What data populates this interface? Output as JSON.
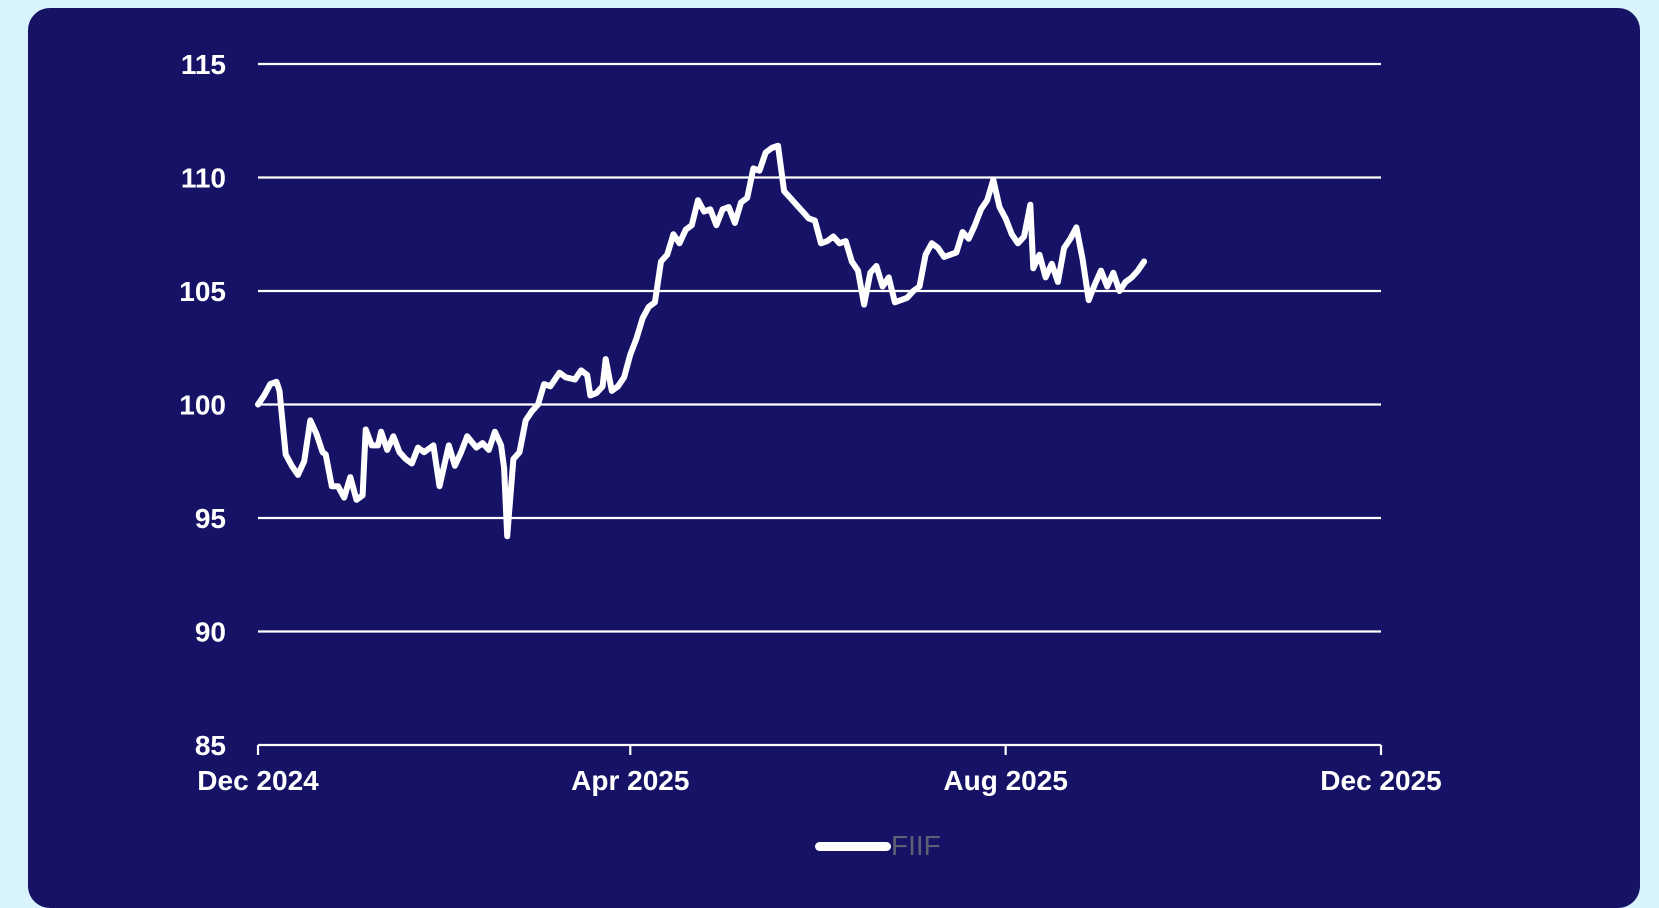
{
  "colors": {
    "page_background": "#d9f3fc",
    "card_background": "#161366",
    "line": "#ffffff",
    "gridline": "#ffffff",
    "legend_label": "#5f5f74"
  },
  "chart_data": {
    "type": "line",
    "title": "",
    "xlabel": "",
    "ylabel": "",
    "ylim": [
      85,
      115
    ],
    "yticks": [
      85,
      90,
      95,
      100,
      105,
      110,
      115
    ],
    "xlim": [
      "2024-12-01",
      "2025-12-01"
    ],
    "xticks": [
      {
        "date": "2024-12-01",
        "label": "Dec 2024"
      },
      {
        "date": "2025-04-01",
        "label": "Apr 2025"
      },
      {
        "date": "2025-08-01",
        "label": "Aug 2025"
      },
      {
        "date": "2025-12-01",
        "label": "Dec 2025"
      }
    ],
    "grid": "horizontal",
    "legend_position": "bottom-center",
    "series": [
      {
        "name": "FIIF",
        "color": "#ffffff",
        "points": [
          [
            "2024-12-01",
            100.0
          ],
          [
            "2024-12-03",
            100.4
          ],
          [
            "2024-12-05",
            100.9
          ],
          [
            "2024-12-07",
            101.0
          ],
          [
            "2024-12-08",
            100.6
          ],
          [
            "2024-12-10",
            97.8
          ],
          [
            "2024-12-12",
            97.3
          ],
          [
            "2024-12-14",
            96.9
          ],
          [
            "2024-12-16",
            97.5
          ],
          [
            "2024-12-18",
            99.3
          ],
          [
            "2024-12-20",
            98.7
          ],
          [
            "2024-12-22",
            97.9
          ],
          [
            "2024-12-23",
            97.8
          ],
          [
            "2024-12-25",
            96.4
          ],
          [
            "2024-12-27",
            96.4
          ],
          [
            "2024-12-29",
            95.9
          ],
          [
            "2024-12-31",
            96.8
          ],
          [
            "2025-01-02",
            95.8
          ],
          [
            "2025-01-04",
            96.0
          ],
          [
            "2025-01-05",
            98.9
          ],
          [
            "2025-01-07",
            98.2
          ],
          [
            "2025-01-09",
            98.2
          ],
          [
            "2025-01-10",
            98.8
          ],
          [
            "2025-01-12",
            98.0
          ],
          [
            "2025-01-14",
            98.6
          ],
          [
            "2025-01-16",
            97.9
          ],
          [
            "2025-01-18",
            97.6
          ],
          [
            "2025-01-20",
            97.4
          ],
          [
            "2025-01-22",
            98.1
          ],
          [
            "2025-01-24",
            97.9
          ],
          [
            "2025-01-27",
            98.2
          ],
          [
            "2025-01-29",
            96.4
          ],
          [
            "2025-02-01",
            98.2
          ],
          [
            "2025-02-03",
            97.3
          ],
          [
            "2025-02-05",
            97.9
          ],
          [
            "2025-02-07",
            98.6
          ],
          [
            "2025-02-10",
            98.1
          ],
          [
            "2025-02-12",
            98.3
          ],
          [
            "2025-02-14",
            98.0
          ],
          [
            "2025-02-16",
            98.8
          ],
          [
            "2025-02-18",
            98.2
          ],
          [
            "2025-02-19",
            97.2
          ],
          [
            "2025-02-20",
            94.2
          ],
          [
            "2025-02-22",
            97.6
          ],
          [
            "2025-02-24",
            97.9
          ],
          [
            "2025-02-26",
            99.3
          ],
          [
            "2025-02-28",
            99.7
          ],
          [
            "2025-03-02",
            100.0
          ],
          [
            "2025-03-04",
            100.9
          ],
          [
            "2025-03-06",
            100.8
          ],
          [
            "2025-03-09",
            101.4
          ],
          [
            "2025-03-11",
            101.2
          ],
          [
            "2025-03-14",
            101.1
          ],
          [
            "2025-03-16",
            101.5
          ],
          [
            "2025-03-18",
            101.3
          ],
          [
            "2025-03-19",
            100.4
          ],
          [
            "2025-03-21",
            100.5
          ],
          [
            "2025-03-23",
            100.8
          ],
          [
            "2025-03-24",
            102.0
          ],
          [
            "2025-03-26",
            100.6
          ],
          [
            "2025-03-28",
            100.8
          ],
          [
            "2025-03-30",
            101.2
          ],
          [
            "2025-04-01",
            102.2
          ],
          [
            "2025-04-03",
            102.9
          ],
          [
            "2025-04-05",
            103.8
          ],
          [
            "2025-04-07",
            104.3
          ],
          [
            "2025-04-09",
            104.5
          ],
          [
            "2025-04-11",
            106.3
          ],
          [
            "2025-04-13",
            106.6
          ],
          [
            "2025-04-15",
            107.5
          ],
          [
            "2025-04-17",
            107.1
          ],
          [
            "2025-04-19",
            107.7
          ],
          [
            "2025-04-21",
            107.9
          ],
          [
            "2025-04-23",
            109.0
          ],
          [
            "2025-04-25",
            108.5
          ],
          [
            "2025-04-27",
            108.6
          ],
          [
            "2025-04-29",
            107.9
          ],
          [
            "2025-05-01",
            108.6
          ],
          [
            "2025-05-03",
            108.7
          ],
          [
            "2025-05-05",
            108.0
          ],
          [
            "2025-05-07",
            108.9
          ],
          [
            "2025-05-09",
            109.1
          ],
          [
            "2025-05-11",
            110.4
          ],
          [
            "2025-05-13",
            110.3
          ],
          [
            "2025-05-15",
            111.1
          ],
          [
            "2025-05-17",
            111.3
          ],
          [
            "2025-05-19",
            111.4
          ],
          [
            "2025-05-21",
            109.4
          ],
          [
            "2025-05-23",
            109.1
          ],
          [
            "2025-05-25",
            108.8
          ],
          [
            "2025-05-27",
            108.5
          ],
          [
            "2025-05-29",
            108.2
          ],
          [
            "2025-05-31",
            108.1
          ],
          [
            "2025-06-02",
            107.1
          ],
          [
            "2025-06-04",
            107.2
          ],
          [
            "2025-06-06",
            107.4
          ],
          [
            "2025-06-08",
            107.1
          ],
          [
            "2025-06-10",
            107.2
          ],
          [
            "2025-06-12",
            106.3
          ],
          [
            "2025-06-14",
            105.9
          ],
          [
            "2025-06-16",
            104.4
          ],
          [
            "2025-06-18",
            105.8
          ],
          [
            "2025-06-20",
            106.1
          ],
          [
            "2025-06-22",
            105.2
          ],
          [
            "2025-06-24",
            105.6
          ],
          [
            "2025-06-26",
            104.5
          ],
          [
            "2025-06-28",
            104.6
          ],
          [
            "2025-06-30",
            104.7
          ],
          [
            "2025-07-02",
            105.0
          ],
          [
            "2025-07-04",
            105.2
          ],
          [
            "2025-07-06",
            106.6
          ],
          [
            "2025-07-08",
            107.1
          ],
          [
            "2025-07-10",
            106.9
          ],
          [
            "2025-07-12",
            106.5
          ],
          [
            "2025-07-14",
            106.6
          ],
          [
            "2025-07-16",
            106.7
          ],
          [
            "2025-07-18",
            107.6
          ],
          [
            "2025-07-20",
            107.3
          ],
          [
            "2025-07-22",
            107.9
          ],
          [
            "2025-07-24",
            108.6
          ],
          [
            "2025-07-26",
            109.0
          ],
          [
            "2025-07-28",
            109.9
          ],
          [
            "2025-07-30",
            108.7
          ],
          [
            "2025-08-01",
            108.2
          ],
          [
            "2025-08-03",
            107.5
          ],
          [
            "2025-08-05",
            107.1
          ],
          [
            "2025-08-07",
            107.4
          ],
          [
            "2025-08-09",
            108.8
          ],
          [
            "2025-08-10",
            106.0
          ],
          [
            "2025-08-12",
            106.6
          ],
          [
            "2025-08-14",
            105.6
          ],
          [
            "2025-08-16",
            106.2
          ],
          [
            "2025-08-18",
            105.4
          ],
          [
            "2025-08-20",
            106.9
          ],
          [
            "2025-08-22",
            107.3
          ],
          [
            "2025-08-24",
            107.8
          ],
          [
            "2025-08-26",
            106.4
          ],
          [
            "2025-08-28",
            104.6
          ],
          [
            "2025-08-30",
            105.3
          ],
          [
            "2025-09-01",
            105.9
          ],
          [
            "2025-09-03",
            105.2
          ],
          [
            "2025-09-05",
            105.8
          ],
          [
            "2025-09-07",
            105.0
          ],
          [
            "2025-09-09",
            105.4
          ],
          [
            "2025-09-11",
            105.6
          ],
          [
            "2025-09-13",
            105.9
          ],
          [
            "2025-09-15",
            106.3
          ]
        ]
      }
    ],
    "legend": [
      {
        "label": "FIIF",
        "color": "#ffffff"
      }
    ]
  }
}
